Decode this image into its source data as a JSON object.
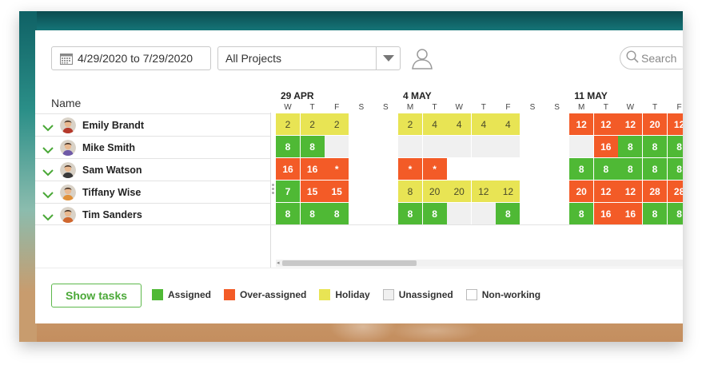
{
  "toolbar": {
    "date_range": "4/29/2020 to 7/29/2020",
    "project_select": "All Projects",
    "search_placeholder": "Search"
  },
  "name_column_header": "Name",
  "people": [
    {
      "name": "Emily Brandt",
      "avatar_color": "#b5392b"
    },
    {
      "name": "Mike Smith",
      "avatar_color": "#6f5aa7"
    },
    {
      "name": "Sam Watson",
      "avatar_color": "#3a3a3a"
    },
    {
      "name": "Tiffany Wise",
      "avatar_color": "#e0913a"
    },
    {
      "name": "Tim Sanders",
      "avatar_color": "#d0672e"
    }
  ],
  "weeks": [
    {
      "label": "29 APR",
      "days": [
        "W",
        "T",
        "F",
        "S",
        "S"
      ]
    },
    {
      "label": "4 MAY",
      "days": [
        "M",
        "T",
        "W",
        "T",
        "F",
        "S",
        "S"
      ]
    },
    {
      "label": "11 MAY",
      "days": [
        "M",
        "T",
        "W",
        "T",
        "F"
      ]
    }
  ],
  "grid": [
    [
      [
        "holiday",
        "2"
      ],
      [
        "holiday",
        "2"
      ],
      [
        "holiday",
        "2"
      ],
      [
        "",
        ""
      ],
      [
        "",
        ""
      ],
      [
        "holiday",
        "2"
      ],
      [
        "holiday",
        "4"
      ],
      [
        "holiday",
        "4"
      ],
      [
        "holiday",
        "4"
      ],
      [
        "holiday",
        "4"
      ],
      [
        "",
        ""
      ],
      [
        "",
        ""
      ],
      [
        "over",
        "12"
      ],
      [
        "over",
        "12"
      ],
      [
        "over",
        "12"
      ],
      [
        "over",
        "20"
      ],
      [
        "over",
        "12"
      ]
    ],
    [
      [
        "assigned",
        "8"
      ],
      [
        "assigned",
        "8"
      ],
      [
        "unassigned",
        ""
      ],
      [
        "",
        ""
      ],
      [
        "",
        ""
      ],
      [
        "unassigned",
        ""
      ],
      [
        "unassigned",
        ""
      ],
      [
        "unassigned",
        ""
      ],
      [
        "unassigned",
        ""
      ],
      [
        "unassigned",
        ""
      ],
      [
        "",
        ""
      ],
      [
        "",
        ""
      ],
      [
        "unassigned",
        ""
      ],
      [
        "over",
        "16"
      ],
      [
        "assigned",
        "8"
      ],
      [
        "assigned",
        "8"
      ],
      [
        "assigned",
        "8"
      ]
    ],
    [
      [
        "over",
        "16"
      ],
      [
        "over",
        "16"
      ],
      [
        "over",
        "*"
      ],
      [
        "",
        ""
      ],
      [
        "",
        ""
      ],
      [
        "over",
        "*"
      ],
      [
        "over",
        "*"
      ],
      [
        "",
        ""
      ],
      [
        "",
        ""
      ],
      [
        "",
        ""
      ],
      [
        "",
        ""
      ],
      [
        "",
        ""
      ],
      [
        "assigned",
        "8"
      ],
      [
        "assigned",
        "8"
      ],
      [
        "assigned",
        "8"
      ],
      [
        "assigned",
        "8"
      ],
      [
        "assigned",
        "8"
      ]
    ],
    [
      [
        "assigned",
        "7"
      ],
      [
        "over",
        "15"
      ],
      [
        "over",
        "15"
      ],
      [
        "",
        ""
      ],
      [
        "",
        ""
      ],
      [
        "holiday",
        "8"
      ],
      [
        "holiday",
        "20"
      ],
      [
        "holiday",
        "20"
      ],
      [
        "holiday",
        "12"
      ],
      [
        "holiday",
        "12"
      ],
      [
        "",
        ""
      ],
      [
        "",
        ""
      ],
      [
        "over",
        "20"
      ],
      [
        "over",
        "12"
      ],
      [
        "over",
        "12"
      ],
      [
        "over",
        "28"
      ],
      [
        "over",
        "28"
      ]
    ],
    [
      [
        "assigned",
        "8"
      ],
      [
        "assigned",
        "8"
      ],
      [
        "assigned",
        "8"
      ],
      [
        "",
        ""
      ],
      [
        "",
        ""
      ],
      [
        "assigned",
        "8"
      ],
      [
        "assigned",
        "8"
      ],
      [
        "unassigned",
        ""
      ],
      [
        "unassigned",
        ""
      ],
      [
        "assigned",
        "8"
      ],
      [
        "",
        ""
      ],
      [
        "",
        ""
      ],
      [
        "assigned",
        "8"
      ],
      [
        "over",
        "16"
      ],
      [
        "over",
        "16"
      ],
      [
        "assigned",
        "8"
      ],
      [
        "assigned",
        "8"
      ]
    ]
  ],
  "footer": {
    "show_tasks_label": "Show tasks",
    "legend": [
      {
        "label": "Assigned",
        "color": "#4fb935"
      },
      {
        "label": "Over-assigned",
        "color": "#f35b27"
      },
      {
        "label": "Holiday",
        "color": "#e8e454"
      },
      {
        "label": "Unassigned",
        "color": "#f0f0f0"
      },
      {
        "label": "Non-working",
        "color": "#ffffff"
      }
    ]
  },
  "colors": {
    "accent_green": "#4aa837",
    "assigned": "#4fb935",
    "over_assigned": "#f35b27",
    "holiday": "#e8e454"
  }
}
